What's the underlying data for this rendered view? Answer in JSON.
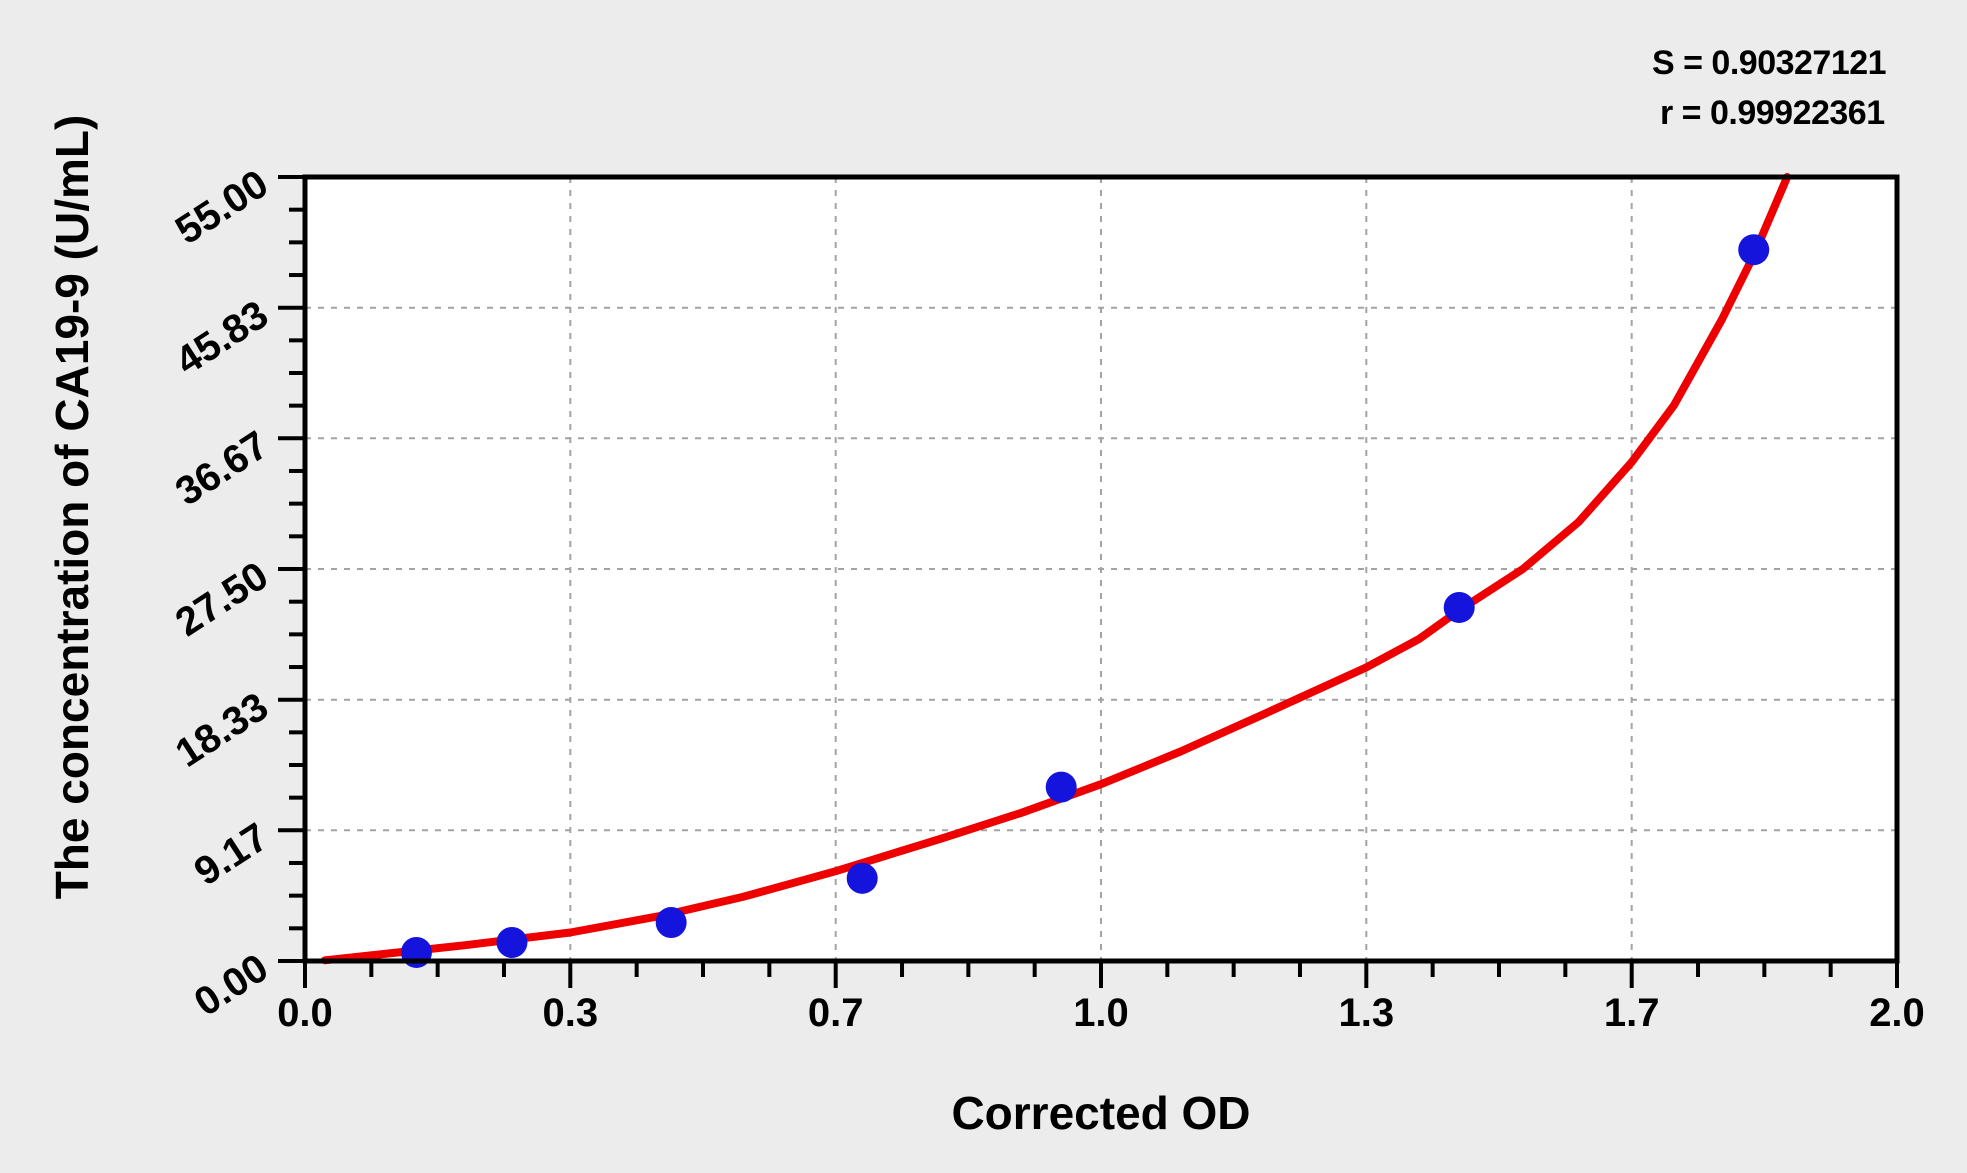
{
  "stats": {
    "s_label": "S = 0.90327121",
    "r_label": "r = 0.99922361"
  },
  "chart_data": {
    "type": "scatter",
    "title": "",
    "xlabel": "Corrected OD",
    "ylabel": "The concentration of CA19-9 (U/mL)",
    "xlim": [
      0,
      2
    ],
    "ylim": [
      0,
      55
    ],
    "x_ticks": {
      "values": [
        0,
        0.3333,
        0.6667,
        1.0,
        1.3333,
        1.6667,
        2.0
      ],
      "labels": [
        "0.0",
        "0.3",
        "0.7",
        "1.0",
        "1.3",
        "1.7",
        "2.0"
      ]
    },
    "y_ticks": {
      "values": [
        0,
        9.17,
        18.33,
        27.5,
        36.67,
        45.83,
        55.0
      ],
      "labels": [
        "0.00",
        "9.17",
        "18.33",
        "27.50",
        "36.67",
        "45.83",
        "55.00"
      ]
    },
    "minor_ticks_per_interval": 3,
    "grid": {
      "style": "dashed",
      "color": "#a3a3a3",
      "on_major_ticks": true
    },
    "legend": "none",
    "point_color": "#1414dd",
    "points": [
      {
        "od": 0.14,
        "conc": 0.6
      },
      {
        "od": 0.26,
        "conc": 1.3
      },
      {
        "od": 0.46,
        "conc": 2.7
      },
      {
        "od": 0.7,
        "conc": 5.8
      },
      {
        "od": 0.95,
        "conc": 12.2
      },
      {
        "od": 1.45,
        "conc": 24.8
      },
      {
        "od": 1.82,
        "conc": 49.9
      }
    ],
    "fit_curve": {
      "color": "#ee0000",
      "samples": [
        [
          0.025,
          0.05
        ],
        [
          0.1,
          0.5
        ],
        [
          0.2,
          1.1
        ],
        [
          0.3333,
          2.0
        ],
        [
          0.45,
          3.2
        ],
        [
          0.55,
          4.5
        ],
        [
          0.6667,
          6.3
        ],
        [
          0.8,
          8.6
        ],
        [
          0.9,
          10.4
        ],
        [
          1.0,
          12.4
        ],
        [
          1.1,
          14.7
        ],
        [
          1.2,
          17.2
        ],
        [
          1.3333,
          20.6
        ],
        [
          1.4,
          22.6
        ],
        [
          1.45,
          24.6
        ],
        [
          1.53,
          27.5
        ],
        [
          1.6,
          30.8
        ],
        [
          1.6667,
          35.0
        ],
        [
          1.72,
          39.0
        ],
        [
          1.78,
          45.0
        ],
        [
          1.82,
          49.5
        ],
        [
          1.862,
          55.0
        ]
      ]
    },
    "fit_stats": {
      "S": "0.90327121",
      "r": "0.99922361"
    }
  }
}
